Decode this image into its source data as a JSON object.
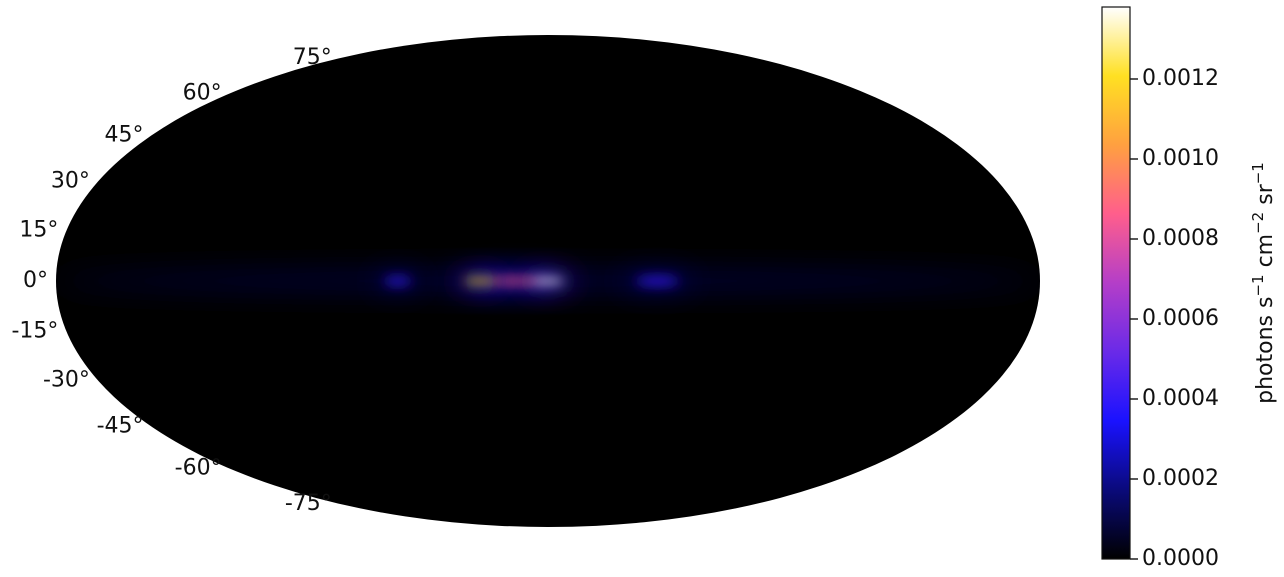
{
  "chart_data": {
    "type": "heatmap",
    "projection": "mollweide",
    "title": "",
    "latitude_tick_labels": [
      "75°",
      "60°",
      "45°",
      "30°",
      "15°",
      "0°",
      "-15°",
      "-30°",
      "-45°",
      "-60°",
      "-75°"
    ],
    "latitude_ticks": [
      75,
      60,
      45,
      30,
      15,
      0,
      -15,
      -30,
      -45,
      -60,
      -75
    ],
    "colormap": "gnuplot2",
    "colorbar": {
      "label_parts": [
        "photons s",
        "−1",
        " cm",
        "−2",
        " sr",
        "−1"
      ],
      "range": [
        0.0,
        0.00138
      ],
      "tick_values": [
        0.0,
        0.0002,
        0.0004,
        0.0006,
        0.0008,
        0.001,
        0.0012
      ],
      "tick_labels": [
        "0.0000",
        "0.0002",
        "0.0004",
        "0.0006",
        "0.0008",
        "0.0010",
        "0.0012"
      ],
      "colors": [
        "#000000",
        "#0a0a7a",
        "#1a12ff",
        "#6a2ae8",
        "#b43ec8",
        "#ff5e8c",
        "#ffa040",
        "#ffe022",
        "#ffffff"
      ]
    },
    "emission": [
      {
        "lon": 0,
        "lat": 0,
        "value": 0.00138,
        "lon_width": 12,
        "lat_width": 1.6
      },
      {
        "lon": -25,
        "lat": 0,
        "value": 0.0012,
        "lon_width": 12,
        "lat_width": 1.6
      },
      {
        "lon": -12,
        "lat": 0,
        "value": 0.0009,
        "lon_width": 20,
        "lat_width": 1.8
      },
      {
        "lon": 40,
        "lat": 0,
        "value": 0.0004,
        "lon_width": 16,
        "lat_width": 2.2
      },
      {
        "lon": -55,
        "lat": 0,
        "value": 0.0004,
        "lon_width": 10,
        "lat_width": 2.0
      }
    ],
    "grid": false
  }
}
